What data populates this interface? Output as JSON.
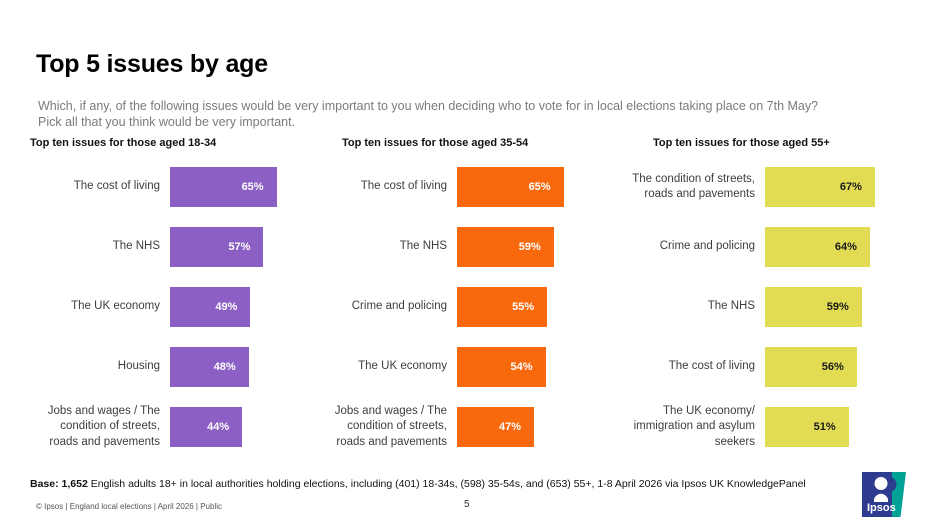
{
  "title": "Top 5 issues by age",
  "subtitle_line1": "Which, if any, of the following issues would be very important to you when deciding who to vote for in local elections taking  place on 7th May?",
  "subtitle_line2": "Pick all that you think would be very important.",
  "chart_data": [
    {
      "type": "bar",
      "orientation": "horizontal",
      "title": "Top ten issues for those aged 18-34",
      "categories": [
        "The cost of living",
        "The NHS",
        "The UK economy",
        "Housing",
        "Jobs and wages / The condition of streets, roads and pavements"
      ],
      "values": [
        65,
        57,
        49,
        48,
        44
      ],
      "value_suffix": "%",
      "xlim": [
        0,
        100
      ],
      "grid": false,
      "bar_color": "#8B5FC3",
      "value_label_color": "#FFFFFF"
    },
    {
      "type": "bar",
      "orientation": "horizontal",
      "title": "Top ten issues for those aged 35-54",
      "categories": [
        "The cost of living",
        "The NHS",
        "Crime and policing",
        "The UK economy",
        "Jobs and wages / The condition of streets, roads and pavements"
      ],
      "values": [
        65,
        59,
        55,
        54,
        47
      ],
      "value_suffix": "%",
      "xlim": [
        0,
        100
      ],
      "grid": false,
      "bar_color": "#F8690D",
      "value_label_color": "#FFFFFF"
    },
    {
      "type": "bar",
      "orientation": "horizontal",
      "title": "Top ten issues for those aged 55+",
      "categories": [
        "The condition of streets, roads and pavements",
        "Crime and policing",
        "The NHS",
        "The cost of living",
        "The UK economy/ immigration and asylum seekers"
      ],
      "values": [
        67,
        64,
        59,
        56,
        51
      ],
      "value_suffix": "%",
      "xlim": [
        0,
        100
      ],
      "grid": false,
      "bar_color": "#E1DC54",
      "value_label_color": "#1A1A1A"
    }
  ],
  "base_note": {
    "bold": "Base: 1,652",
    "rest": " English adults 18+ in local authorities holding elections, including (401) 18-34s, (598) 35-54s, and (653) 55+, 1-8 April 2026 via Ipsos UK KnowledgePanel"
  },
  "footer": {
    "copyright": "© Ipsos | England local elections | April 2026 | Public",
    "page_number": "5",
    "logo_text": "Ipsos"
  },
  "colors": {
    "purple": "#8B5FC3",
    "orange": "#F8690D",
    "yellow": "#E1DC54",
    "logo_navy": "#2E3C8F",
    "logo_teal": "#00A296"
  }
}
